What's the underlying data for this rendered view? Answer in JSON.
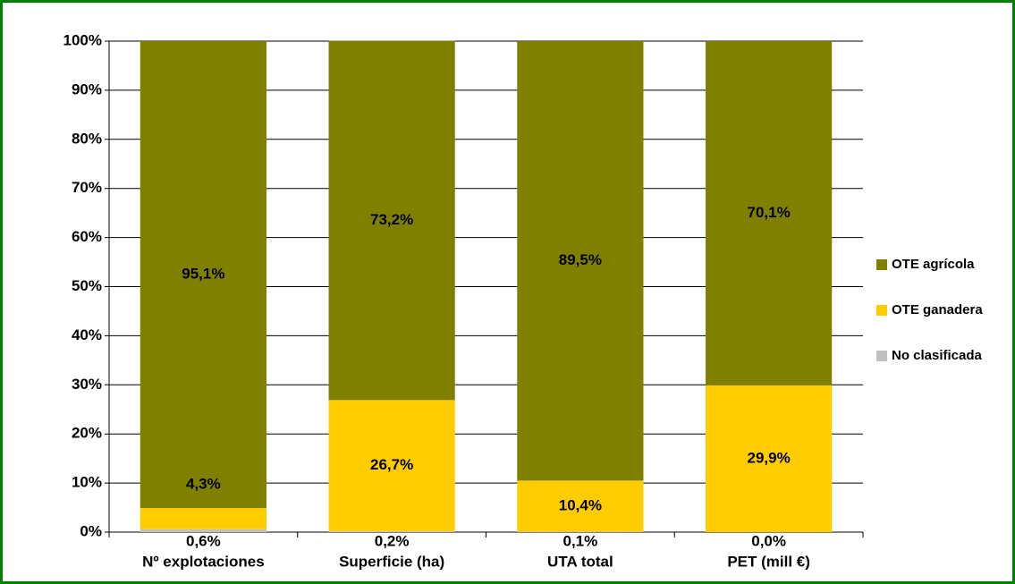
{
  "chart_data": {
    "type": "stacked_bar",
    "categories": [
      "Nº explotaciones",
      "Superficie (ha)",
      "UTA total",
      "PET (mill €)"
    ],
    "series": [
      {
        "name": "No clasificada",
        "color": "#c0c0c0",
        "values": [
          0.6,
          0.2,
          0.1,
          0.0
        ],
        "value_labels": [
          "0,6%",
          "0,2%",
          "0,1%",
          "0,0%"
        ]
      },
      {
        "name": "OTE ganadera",
        "color": "#ffcc00",
        "values": [
          4.3,
          26.7,
          10.4,
          29.9
        ],
        "value_labels": [
          "4,3%",
          "26,7%",
          "10,4%",
          "29,9%"
        ]
      },
      {
        "name": "OTE agrícola",
        "color": "#808000",
        "values": [
          95.1,
          73.2,
          89.5,
          70.1
        ],
        "value_labels": [
          "95,1%",
          "73,2%",
          "89,5%",
          "70,1%"
        ]
      }
    ],
    "ylim": [
      0,
      100
    ],
    "yticks": [
      {
        "value": 0,
        "label": "0%"
      },
      {
        "value": 10,
        "label": "10%"
      },
      {
        "value": 20,
        "label": "20%"
      },
      {
        "value": 30,
        "label": "30%"
      },
      {
        "value": 40,
        "label": "40%"
      },
      {
        "value": 50,
        "label": "50%"
      },
      {
        "value": 60,
        "label": "60%"
      },
      {
        "value": 70,
        "label": "70%"
      },
      {
        "value": 80,
        "label": "80%"
      },
      {
        "value": 90,
        "label": "90%"
      },
      {
        "value": 100,
        "label": "100%"
      }
    ],
    "grid": true,
    "legend": "right"
  }
}
